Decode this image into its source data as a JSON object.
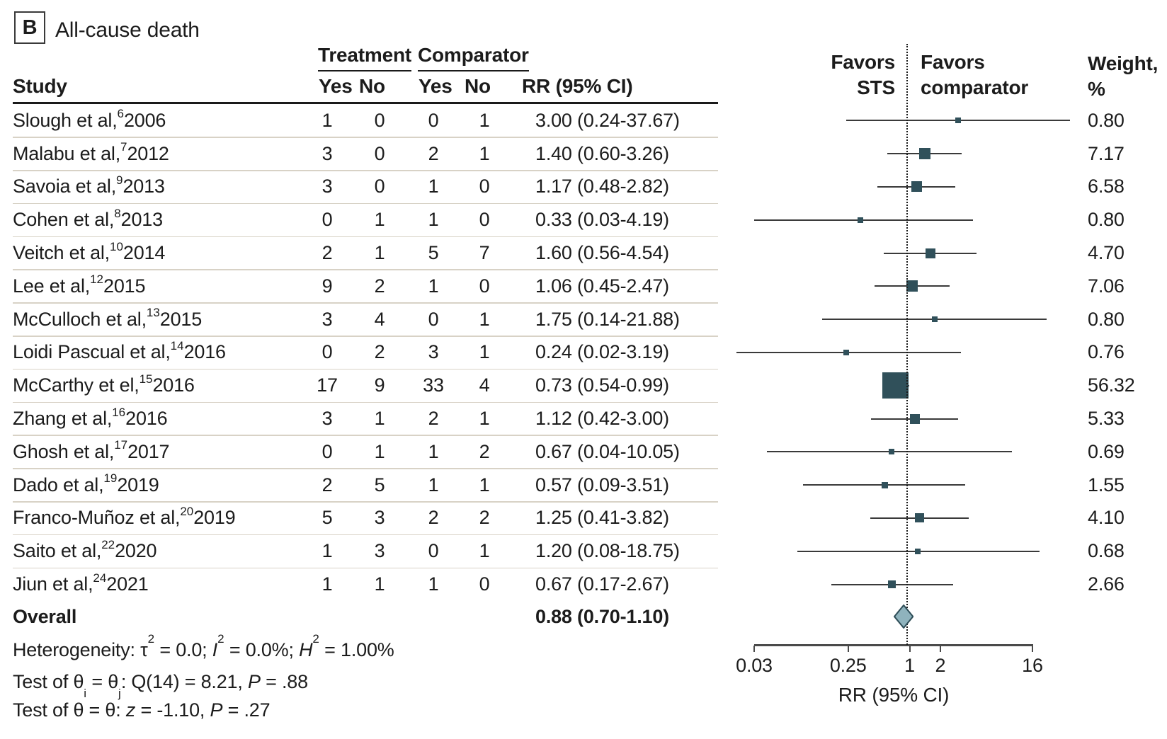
{
  "panel": {
    "label": "B",
    "title": "All-cause death"
  },
  "table": {
    "group_treatment": "Treatment",
    "group_comparator": "Comparator",
    "col_study": "Study",
    "col_yes": "Yes",
    "col_no": "No",
    "col_rr": "RR (95% CI)",
    "col_weight_1": "Weight,",
    "col_weight_2": "%"
  },
  "plot": {
    "favors_sts_1": "Favors",
    "favors_sts_2": "STS",
    "favors_comp_1": "Favors",
    "favors_comp_2": "comparator",
    "axis_label": "RR (95% CI)",
    "colors": {
      "marker": "#30505a",
      "ci_line": "#3a3a3a",
      "diamond_fill": "#8fb3bd",
      "diamond_stroke": "#2e4d57",
      "separator": "#d8d2c6"
    }
  },
  "chart_data": {
    "type": "forest",
    "title": "All-cause death",
    "effect_measure": "RR (95% CI)",
    "axis": {
      "scale": "log",
      "min": 0.03,
      "max": 16,
      "ticks": [
        0.03,
        0.25,
        1,
        2,
        16
      ],
      "tick_labels": [
        "0.03",
        "0.25",
        "1",
        "2",
        "16"
      ],
      "ref_line": 1
    },
    "columns": [
      "Study",
      "Treatment Yes",
      "Treatment No",
      "Comparator Yes",
      "Comparator No",
      "RR (95% CI)",
      "Weight, %"
    ],
    "studies": [
      {
        "label": "Slough et al,",
        "ref": "6",
        "year": "2006",
        "t_yes": "1",
        "t_no": "0",
        "c_yes": "0",
        "c_no": "1",
        "rr": 3.0,
        "lo": 0.24,
        "hi": 37.67,
        "rr_text": "3.00 (0.24-37.67)",
        "weight": 0.8,
        "weight_text": "0.80"
      },
      {
        "label": "Malabu et al,",
        "ref": "7",
        "year": "2012",
        "t_yes": "3",
        "t_no": "0",
        "c_yes": "2",
        "c_no": "1",
        "rr": 1.4,
        "lo": 0.6,
        "hi": 3.26,
        "rr_text": "1.40 (0.60-3.26)",
        "weight": 7.17,
        "weight_text": "7.17"
      },
      {
        "label": "Savoia et al,",
        "ref": "9",
        "year": "2013",
        "t_yes": "3",
        "t_no": "0",
        "c_yes": "1",
        "c_no": "0",
        "rr": 1.17,
        "lo": 0.48,
        "hi": 2.82,
        "rr_text": "1.17 (0.48-2.82)",
        "weight": 6.58,
        "weight_text": "6.58"
      },
      {
        "label": "Cohen et al,",
        "ref": "8",
        "year": "2013",
        "t_yes": "0",
        "t_no": "1",
        "c_yes": "1",
        "c_no": "0",
        "rr": 0.33,
        "lo": 0.03,
        "hi": 4.19,
        "rr_text": "0.33 (0.03-4.19)",
        "weight": 0.8,
        "weight_text": "0.80"
      },
      {
        "label": "Veitch et al,",
        "ref": "10",
        "year": "2014",
        "t_yes": "2",
        "t_no": "1",
        "c_yes": "5",
        "c_no": "7",
        "rr": 1.6,
        "lo": 0.56,
        "hi": 4.54,
        "rr_text": "1.60 (0.56-4.54)",
        "weight": 4.7,
        "weight_text": "4.70"
      },
      {
        "label": "Lee et al,",
        "ref": "12",
        "year": "2015",
        "t_yes": "9",
        "t_no": "2",
        "c_yes": "1",
        "c_no": "0",
        "rr": 1.06,
        "lo": 0.45,
        "hi": 2.47,
        "rr_text": "1.06 (0.45-2.47)",
        "weight": 7.06,
        "weight_text": "7.06"
      },
      {
        "label": "McCulloch et al,",
        "ref": "13",
        "year": "2015",
        "t_yes": "3",
        "t_no": "4",
        "c_yes": "0",
        "c_no": "1",
        "rr": 1.75,
        "lo": 0.14,
        "hi": 21.88,
        "rr_text": "1.75 (0.14-21.88)",
        "weight": 0.8,
        "weight_text": "0.80"
      },
      {
        "label": "Loidi Pascual et al,",
        "ref": "14",
        "year": "2016",
        "t_yes": "0",
        "t_no": "2",
        "c_yes": "3",
        "c_no": "1",
        "rr": 0.24,
        "lo": 0.02,
        "hi": 3.19,
        "rr_text": "0.24 (0.02-3.19)",
        "weight": 0.76,
        "weight_text": "0.76"
      },
      {
        "label": "McCarthy et el,",
        "ref": "15",
        "year": "2016",
        "t_yes": "17",
        "t_no": "9",
        "c_yes": "33",
        "c_no": "4",
        "rr": 0.73,
        "lo": 0.54,
        "hi": 0.99,
        "rr_text": "0.73 (0.54-0.99)",
        "weight": 56.32,
        "weight_text": "56.32"
      },
      {
        "label": "Zhang et al,",
        "ref": "16",
        "year": "2016",
        "t_yes": "3",
        "t_no": "1",
        "c_yes": "2",
        "c_no": "1",
        "rr": 1.12,
        "lo": 0.42,
        "hi": 3.0,
        "rr_text": "1.12 (0.42-3.00)",
        "weight": 5.33,
        "weight_text": "5.33"
      },
      {
        "label": "Ghosh et al,",
        "ref": "17",
        "year": "2017",
        "t_yes": "0",
        "t_no": "1",
        "c_yes": "1",
        "c_no": "2",
        "rr": 0.67,
        "lo": 0.04,
        "hi": 10.05,
        "rr_text": "0.67 (0.04-10.05)",
        "weight": 0.69,
        "weight_text": "0.69"
      },
      {
        "label": "Dado et al,",
        "ref": "19",
        "year": "2019",
        "t_yes": "2",
        "t_no": "5",
        "c_yes": "1",
        "c_no": "1",
        "rr": 0.57,
        "lo": 0.09,
        "hi": 3.51,
        "rr_text": "0.57 (0.09-3.51)",
        "weight": 1.55,
        "weight_text": "1.55"
      },
      {
        "label": "Franco-Muñoz et al,",
        "ref": "20",
        "year": "2019",
        "t_yes": "5",
        "t_no": "3",
        "c_yes": "2",
        "c_no": "2",
        "rr": 1.25,
        "lo": 0.41,
        "hi": 3.82,
        "rr_text": "1.25 (0.41-3.82)",
        "weight": 4.1,
        "weight_text": "4.10"
      },
      {
        "label": "Saito et al,",
        "ref": "22",
        "year": "2020",
        "t_yes": "1",
        "t_no": "3",
        "c_yes": "0",
        "c_no": "1",
        "rr": 1.2,
        "lo": 0.08,
        "hi": 18.75,
        "rr_text": "1.20 (0.08-18.75)",
        "weight": 0.68,
        "weight_text": "0.68"
      },
      {
        "label": "Jiun et al,",
        "ref": "24",
        "year": "2021",
        "t_yes": "1",
        "t_no": "1",
        "c_yes": "1",
        "c_no": "0",
        "rr": 0.67,
        "lo": 0.17,
        "hi": 2.67,
        "rr_text": "0.67 (0.17-2.67)",
        "weight": 2.66,
        "weight_text": "2.66"
      }
    ],
    "overall": {
      "label": "Overall",
      "rr": 0.88,
      "lo": 0.7,
      "hi": 1.1,
      "rr_text": "0.88 (0.70-1.10)"
    },
    "footnotes": [
      [
        {
          "t": "Heterogeneity: τ"
        },
        {
          "sup": "2"
        },
        {
          "t": " = 0.0; "
        },
        {
          "i": "I"
        },
        {
          "sup": "2"
        },
        {
          "t": " = 0.0%; "
        },
        {
          "i": "H"
        },
        {
          "sup": "2"
        },
        {
          "t": " = 1.00%"
        }
      ],
      [
        {
          "t": "Test of θ"
        },
        {
          "sub": "i"
        },
        {
          "t": " = θ"
        },
        {
          "sub": "j"
        },
        {
          "t": ": Q(14) = 8.21, "
        },
        {
          "i": "P"
        },
        {
          "t": " = .88"
        }
      ],
      [
        {
          "t": "Test of θ = θ: "
        },
        {
          "i": "z"
        },
        {
          "t": " = -1.10, "
        },
        {
          "i": "P"
        },
        {
          "t": " = .27"
        }
      ]
    ]
  }
}
